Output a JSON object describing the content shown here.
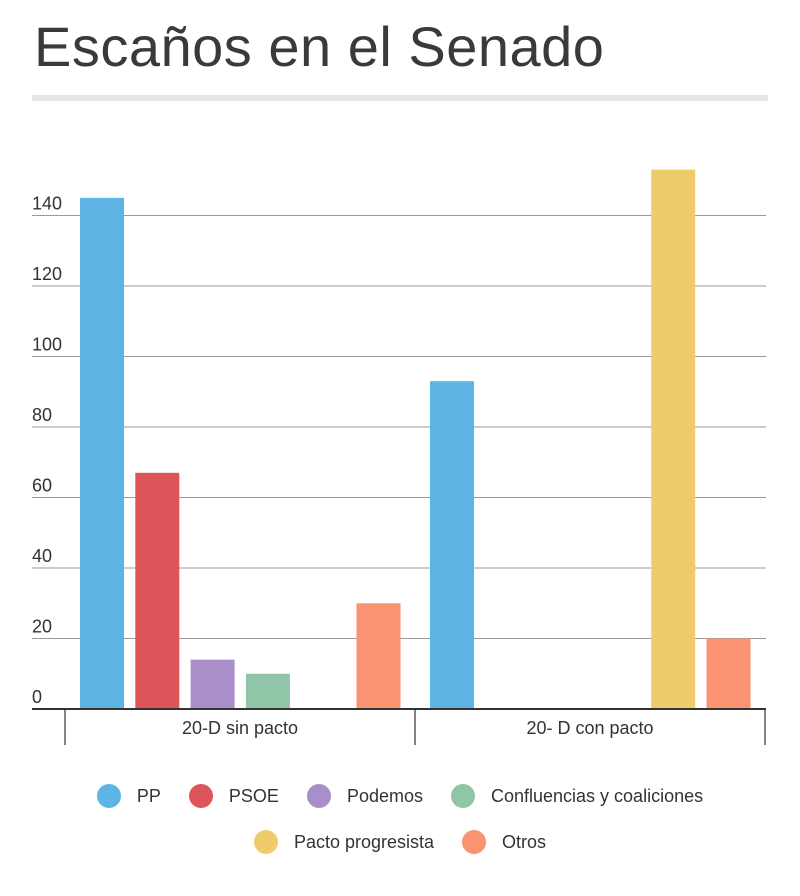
{
  "header": {
    "title": "Escaños en el Senado"
  },
  "chart_data": {
    "type": "bar",
    "title": "Escaños en el Senado",
    "xlabel": "",
    "ylabel": "",
    "ylim": [
      0,
      160
    ],
    "yticks": [
      0,
      20,
      40,
      60,
      80,
      100,
      120,
      140
    ],
    "grid": true,
    "legend_position": "bottom",
    "categories": [
      "20-D sin pacto",
      "20- D con pacto"
    ],
    "series": [
      {
        "name": "PP",
        "color": "#5db5e5",
        "values": [
          145,
          93
        ]
      },
      {
        "name": "PSOE",
        "color": "#dd5558",
        "values": [
          67,
          null
        ]
      },
      {
        "name": "Podemos",
        "color": "#a98fc9",
        "values": [
          14,
          null
        ]
      },
      {
        "name": "Confluencias y coaliciones",
        "color": "#90c5a8",
        "values": [
          10,
          null
        ]
      },
      {
        "name": "Pacto progresista",
        "color": "#eecb6b",
        "values": [
          null,
          153
        ]
      },
      {
        "name": "Otros",
        "color": "#f99372",
        "values": [
          30,
          20
        ]
      }
    ]
  }
}
